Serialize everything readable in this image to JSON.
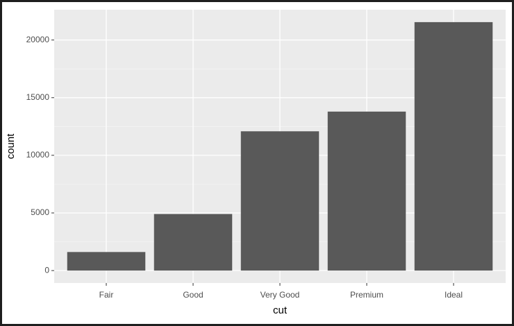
{
  "chart_data": {
    "type": "bar",
    "x_label": "cut",
    "y_label": "count",
    "categories": [
      "Fair",
      "Good",
      "Very Good",
      "Premium",
      "Ideal"
    ],
    "values": [
      1610,
      4906,
      12082,
      13791,
      21551
    ],
    "color": "#595959",
    "ylim": [
      -1077.55,
      22628.55
    ],
    "yticks": [
      0,
      5000,
      10000,
      15000,
      20000
    ],
    "grid": true
  }
}
